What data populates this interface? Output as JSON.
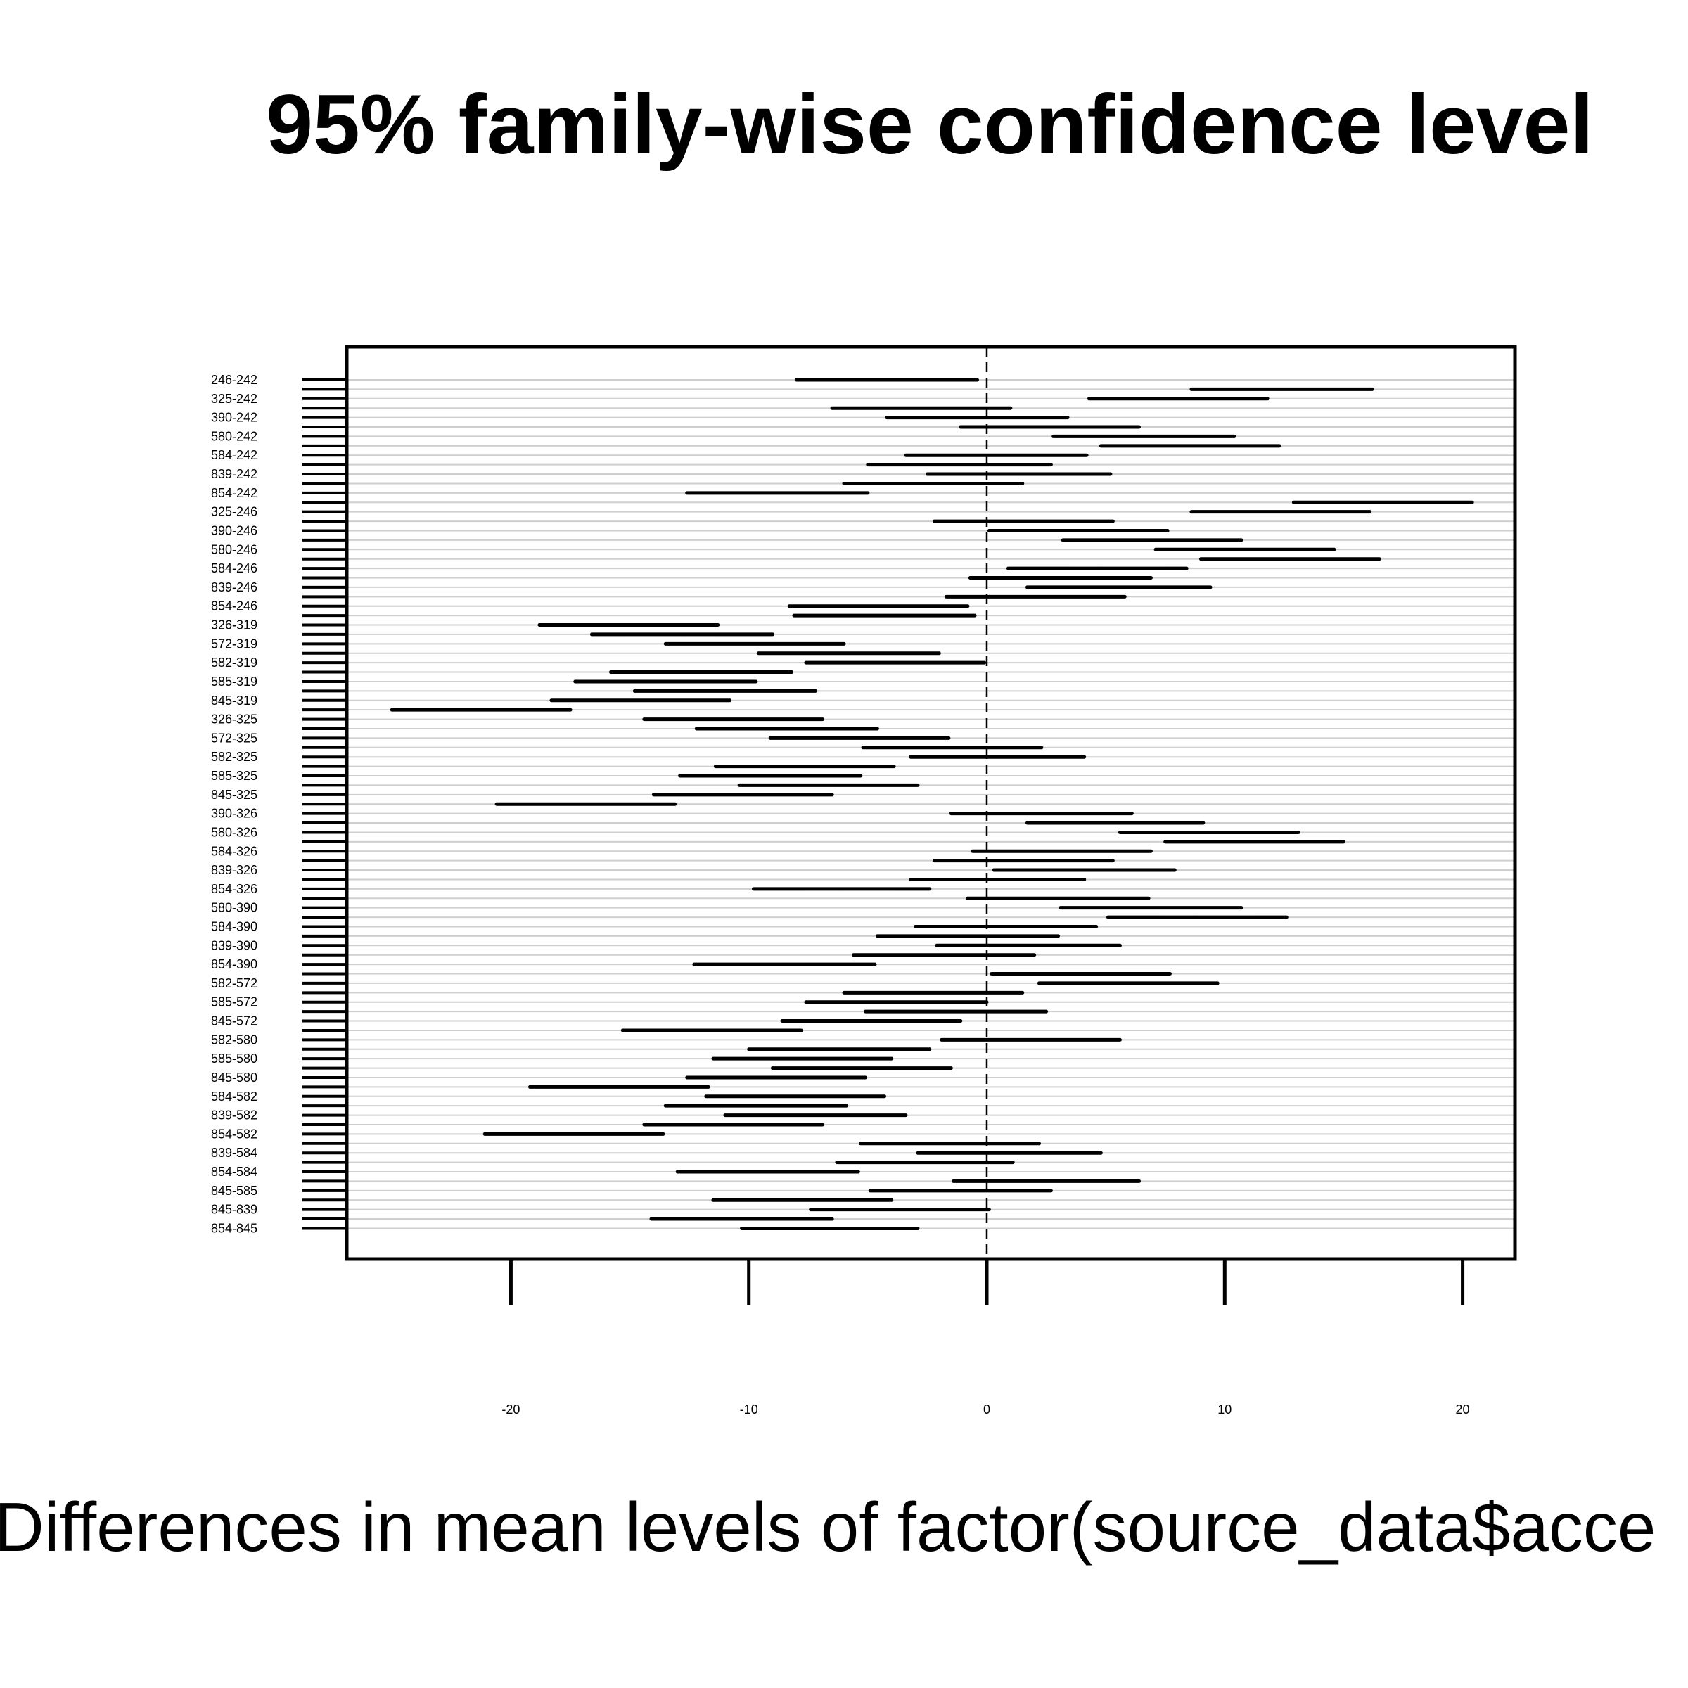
{
  "chart_data": {
    "type": "interval",
    "title": "95% family-wise confidence level",
    "xlabel": "Differences in mean levels of factor(source_data$acce",
    "xlim": [
      -26.9,
      22.2
    ],
    "xticks": [
      -20,
      -10,
      0,
      10,
      20
    ],
    "xtick_labels": [
      "-20",
      "-10",
      "0",
      "10",
      "20"
    ],
    "reference_line": 0,
    "grid": true,
    "rows": [
      {
        "label": "246-242",
        "lwr": -8.0,
        "est": -4.2,
        "upr": -0.4
      },
      {
        "label": "",
        "lwr": 8.6,
        "est": 12.4,
        "upr": 16.2
      },
      {
        "label": "325-242",
        "lwr": 4.3,
        "est": 8.1,
        "upr": 11.8
      },
      {
        "label": "",
        "lwr": -6.5,
        "est": -2.7,
        "upr": 1.0
      },
      {
        "label": "390-242",
        "lwr": -4.2,
        "est": -0.4,
        "upr": 3.4
      },
      {
        "label": "",
        "lwr": -1.1,
        "est": 2.7,
        "upr": 6.4
      },
      {
        "label": "580-242",
        "lwr": 2.8,
        "est": 6.6,
        "upr": 10.4
      },
      {
        "label": "",
        "lwr": 4.8,
        "est": 8.6,
        "upr": 12.3
      },
      {
        "label": "584-242",
        "lwr": -3.4,
        "est": 0.4,
        "upr": 4.2
      },
      {
        "label": "",
        "lwr": -5.0,
        "est": -1.2,
        "upr": 2.7
      },
      {
        "label": "839-242",
        "lwr": -2.5,
        "est": 1.3,
        "upr": 5.2
      },
      {
        "label": "",
        "lwr": -6.0,
        "est": -2.2,
        "upr": 1.5
      },
      {
        "label": "854-242",
        "lwr": -12.6,
        "est": -8.8,
        "upr": -5.0
      },
      {
        "label": "",
        "lwr": 12.9,
        "est": 16.6,
        "upr": 20.4
      },
      {
        "label": "325-246",
        "lwr": 8.6,
        "est": 12.3,
        "upr": 16.1
      },
      {
        "label": "",
        "lwr": -2.2,
        "est": 1.5,
        "upr": 5.3
      },
      {
        "label": "390-246",
        "lwr": 0.1,
        "est": 3.8,
        "upr": 7.6
      },
      {
        "label": "",
        "lwr": 3.2,
        "est": 6.9,
        "upr": 10.7
      },
      {
        "label": "580-246",
        "lwr": 7.1,
        "est": 10.9,
        "upr": 14.6
      },
      {
        "label": "",
        "lwr": 9.0,
        "est": 12.8,
        "upr": 16.5
      },
      {
        "label": "584-246",
        "lwr": 0.9,
        "est": 4.7,
        "upr": 8.4
      },
      {
        "label": "",
        "lwr": -0.7,
        "est": 3.1,
        "upr": 6.9
      },
      {
        "label": "839-246",
        "lwr": 1.7,
        "est": 5.6,
        "upr": 9.4
      },
      {
        "label": "",
        "lwr": -1.7,
        "est": 2.0,
        "upr": 5.8
      },
      {
        "label": "854-246",
        "lwr": -8.3,
        "est": -4.6,
        "upr": -0.8
      },
      {
        "label": "",
        "lwr": -8.1,
        "est": -4.3,
        "upr": -0.5
      },
      {
        "label": "326-319",
        "lwr": -18.8,
        "est": -15.1,
        "upr": -11.3
      },
      {
        "label": "",
        "lwr": -16.6,
        "est": -12.8,
        "upr": -9.0
      },
      {
        "label": "572-319",
        "lwr": -13.5,
        "est": -9.8,
        "upr": -6.0
      },
      {
        "label": "",
        "lwr": -9.6,
        "est": -5.8,
        "upr": -2.0
      },
      {
        "label": "582-319",
        "lwr": -7.6,
        "est": -3.8,
        "upr": -0.1
      },
      {
        "label": "",
        "lwr": -15.8,
        "est": -12.0,
        "upr": -8.2
      },
      {
        "label": "585-319",
        "lwr": -17.3,
        "est": -13.5,
        "upr": -9.7
      },
      {
        "label": "",
        "lwr": -14.8,
        "est": -11.0,
        "upr": -7.2
      },
      {
        "label": "845-319",
        "lwr": -18.3,
        "est": -14.6,
        "upr": -10.8
      },
      {
        "label": "",
        "lwr": -25.0,
        "est": -21.2,
        "upr": -17.5
      },
      {
        "label": "326-325",
        "lwr": -14.4,
        "est": -10.6,
        "upr": -6.9
      },
      {
        "label": "",
        "lwr": -12.2,
        "est": -8.4,
        "upr": -4.6
      },
      {
        "label": "572-325",
        "lwr": -9.1,
        "est": -5.3,
        "upr": -1.6
      },
      {
        "label": "",
        "lwr": -5.2,
        "est": -1.4,
        "upr": 2.3
      },
      {
        "label": "582-325",
        "lwr": -3.2,
        "est": 0.6,
        "upr": 4.1
      },
      {
        "label": "",
        "lwr": -11.4,
        "est": -7.6,
        "upr": -3.9
      },
      {
        "label": "585-325",
        "lwr": -12.9,
        "est": -9.1,
        "upr": -5.3
      },
      {
        "label": "",
        "lwr": -10.4,
        "est": -6.6,
        "upr": -2.9
      },
      {
        "label": "845-325",
        "lwr": -14.0,
        "est": -10.2,
        "upr": -6.5
      },
      {
        "label": "",
        "lwr": -20.6,
        "est": -16.9,
        "upr": -13.1
      },
      {
        "label": "390-326",
        "lwr": -1.5,
        "est": 2.3,
        "upr": 6.1
      },
      {
        "label": "",
        "lwr": 1.7,
        "est": 5.4,
        "upr": 9.1
      },
      {
        "label": "580-326",
        "lwr": 5.6,
        "est": 9.3,
        "upr": 13.1
      },
      {
        "label": "",
        "lwr": 7.5,
        "est": 11.3,
        "upr": 15.0
      },
      {
        "label": "584-326",
        "lwr": -0.6,
        "est": 3.1,
        "upr": 6.9
      },
      {
        "label": "",
        "lwr": -2.2,
        "est": 1.6,
        "upr": 5.3
      },
      {
        "label": "839-326",
        "lwr": 0.3,
        "est": 4.1,
        "upr": 7.9
      },
      {
        "label": "",
        "lwr": -3.2,
        "est": 0.5,
        "upr": 4.1
      },
      {
        "label": "854-326",
        "lwr": -9.8,
        "est": -6.1,
        "upr": -2.4
      },
      {
        "label": "",
        "lwr": -0.8,
        "est": 3.0,
        "upr": 6.8
      },
      {
        "label": "580-390",
        "lwr": 3.1,
        "est": 6.9,
        "upr": 10.7
      },
      {
        "label": "",
        "lwr": 5.1,
        "est": 8.8,
        "upr": 12.6
      },
      {
        "label": "584-390",
        "lwr": -3.0,
        "est": 0.8,
        "upr": 4.6
      },
      {
        "label": "",
        "lwr": -4.6,
        "est": -0.8,
        "upr": 3.0
      },
      {
        "label": "839-390",
        "lwr": -2.1,
        "est": 1.7,
        "upr": 5.6
      },
      {
        "label": "",
        "lwr": -5.6,
        "est": -1.8,
        "upr": 2.0
      },
      {
        "label": "854-390",
        "lwr": -12.3,
        "est": -8.5,
        "upr": -4.7
      },
      {
        "label": "",
        "lwr": 0.2,
        "est": 4.0,
        "upr": 7.7
      },
      {
        "label": "582-572",
        "lwr": 2.2,
        "est": 5.9,
        "upr": 9.7
      },
      {
        "label": "",
        "lwr": -6.0,
        "est": -2.2,
        "upr": 1.5
      },
      {
        "label": "585-572",
        "lwr": -7.6,
        "est": -3.8,
        "upr": 0.0
      },
      {
        "label": "",
        "lwr": -5.1,
        "est": -1.3,
        "upr": 2.5
      },
      {
        "label": "845-572",
        "lwr": -8.6,
        "est": -4.9,
        "upr": -1.1
      },
      {
        "label": "",
        "lwr": -15.3,
        "est": -11.5,
        "upr": -7.8
      },
      {
        "label": "582-580",
        "lwr": -1.9,
        "est": 1.9,
        "upr": 5.6
      },
      {
        "label": "",
        "lwr": -10.0,
        "est": -6.2,
        "upr": -2.4
      },
      {
        "label": "585-580",
        "lwr": -11.5,
        "est": -7.7,
        "upr": -4.0
      },
      {
        "label": "",
        "lwr": -9.0,
        "est": -5.3,
        "upr": -1.5
      },
      {
        "label": "845-580",
        "lwr": -12.6,
        "est": -8.9,
        "upr": -5.1
      },
      {
        "label": "",
        "lwr": -19.2,
        "est": -15.5,
        "upr": -11.7
      },
      {
        "label": "584-582",
        "lwr": -11.8,
        "est": -8.1,
        "upr": -4.3
      },
      {
        "label": "",
        "lwr": -13.5,
        "est": -9.7,
        "upr": -5.9
      },
      {
        "label": "839-582",
        "lwr": -11.0,
        "est": -7.2,
        "upr": -3.4
      },
      {
        "label": "",
        "lwr": -14.4,
        "est": -10.7,
        "upr": -6.9
      },
      {
        "label": "854-582",
        "lwr": -21.1,
        "est": -17.3,
        "upr": -13.6
      },
      {
        "label": "",
        "lwr": -5.3,
        "est": -1.6,
        "upr": 2.2
      },
      {
        "label": "839-584",
        "lwr": -2.9,
        "est": 1.0,
        "upr": 4.8
      },
      {
        "label": "",
        "lwr": -6.3,
        "est": -2.6,
        "upr": 1.1
      },
      {
        "label": "854-584",
        "lwr": -13.0,
        "est": -9.2,
        "upr": -5.4
      },
      {
        "label": "",
        "lwr": -1.4,
        "est": 2.5,
        "upr": 6.4
      },
      {
        "label": "845-585",
        "lwr": -4.9,
        "est": -1.1,
        "upr": 2.7
      },
      {
        "label": "",
        "lwr": -11.5,
        "est": -7.8,
        "upr": -4.0
      },
      {
        "label": "845-839",
        "lwr": -7.4,
        "est": -3.6,
        "upr": 0.1
      },
      {
        "label": "",
        "lwr": -14.1,
        "est": -10.3,
        "upr": -6.5
      },
      {
        "label": "854-845",
        "lwr": -10.3,
        "est": -6.6,
        "upr": -2.9
      }
    ]
  }
}
